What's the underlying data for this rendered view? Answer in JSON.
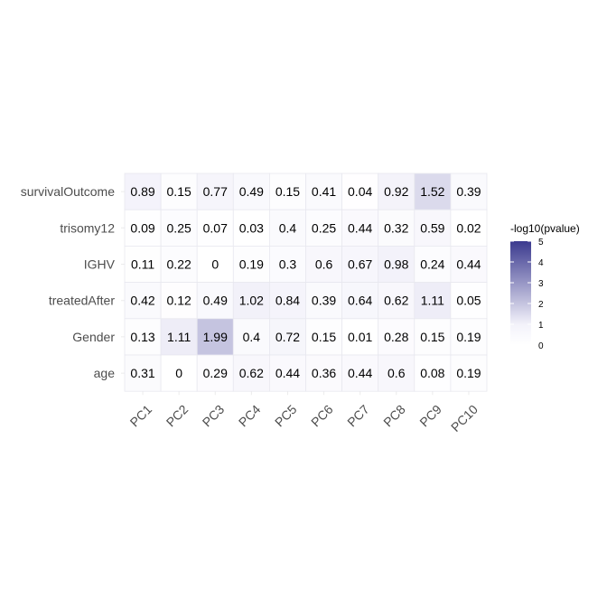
{
  "chart_data": {
    "type": "heatmap",
    "x_categories": [
      "PC1",
      "PC2",
      "PC3",
      "PC4",
      "PC5",
      "PC6",
      "PC7",
      "PC8",
      "PC9",
      "PC10"
    ],
    "y_categories": [
      "survivalOutcome",
      "trisomy12",
      "IGHV",
      "treatedAfter",
      "Gender",
      "age"
    ],
    "values": [
      [
        0.89,
        0.15,
        0.77,
        0.49,
        0.15,
        0.41,
        0.04,
        0.92,
        1.52,
        0.39
      ],
      [
        0.09,
        0.25,
        0.07,
        0.03,
        0.4,
        0.25,
        0.44,
        0.32,
        0.59,
        0.02
      ],
      [
        0.11,
        0.22,
        0,
        0.19,
        0.3,
        0.6,
        0.67,
        0.98,
        0.24,
        0.44
      ],
      [
        0.42,
        0.12,
        0.49,
        1.02,
        0.84,
        0.39,
        0.64,
        0.62,
        1.11,
        0.05
      ],
      [
        0.13,
        1.11,
        1.99,
        0.4,
        0.72,
        0.15,
        0.01,
        0.28,
        0.15,
        0.19
      ],
      [
        0.31,
        0,
        0.29,
        0.62,
        0.44,
        0.36,
        0.44,
        0.6,
        0.08,
        0.19
      ]
    ],
    "color_scale": {
      "low": "#ffffff",
      "high": "#3b3a8f",
      "domain": [
        0,
        5
      ]
    },
    "legend": {
      "title": "-log10(pvalue)",
      "ticks": [
        0,
        1,
        2,
        3,
        4,
        5
      ],
      "placement": "right"
    },
    "grid": false
  }
}
